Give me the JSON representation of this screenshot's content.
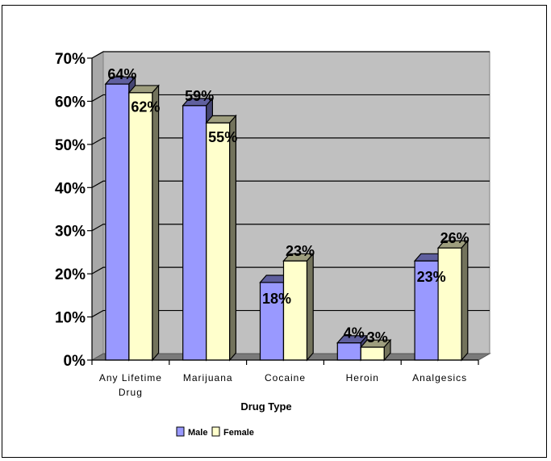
{
  "chart_data": {
    "type": "bar",
    "title": "",
    "xlabel": "Drug Type",
    "ylabel": "",
    "ylim": [
      0,
      70
    ],
    "yticks": [
      "0%",
      "10%",
      "20%",
      "30%",
      "40%",
      "50%",
      "60%",
      "70%"
    ],
    "grid": true,
    "legend_position": "bottom",
    "categories": [
      "Any Lifetime Drug",
      "Marijuana",
      "Cocaine",
      "Heroin",
      "Analgesics"
    ],
    "series": [
      {
        "name": "Male",
        "values": [
          64,
          59,
          18,
          4,
          23
        ],
        "labels": [
          "64%",
          "59%",
          "18%",
          "4%",
          "23%"
        ],
        "color": "#9999ff"
      },
      {
        "name": "Female",
        "values": [
          62,
          55,
          23,
          3,
          26
        ],
        "labels": [
          "62%",
          "55%",
          "23%",
          "3%",
          "26%"
        ],
        "color": "#ffffcc"
      }
    ],
    "plot_background": "#c0c0c0",
    "style": "3d-clustered-column"
  }
}
